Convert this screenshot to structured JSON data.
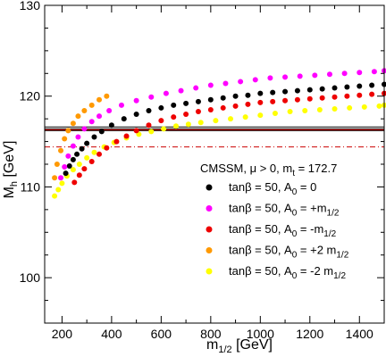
{
  "chart_data": {
    "type": "scatter",
    "xlabel": "m",
    "xlabel_sub": "1/2",
    "xlabel_unit": " [GeV]",
    "ylabel": "M",
    "ylabel_sub": "h",
    "ylabel_unit": " [GeV]",
    "xlim": [
      130,
      1500
    ],
    "ylim": [
      95,
      130
    ],
    "x_ticks": [
      200,
      400,
      600,
      800,
      1000,
      1200,
      1400
    ],
    "y_ticks": [
      100,
      110,
      120,
      130
    ],
    "grid": false,
    "annotation": {
      "text": "CMSSM, μ > 0, m",
      "sub": "t",
      "rest": " = 172.7"
    },
    "reference_lines": [
      {
        "style": "solid",
        "color": "#000000",
        "y": 116.2
      },
      {
        "style": "solid",
        "color": "#000000",
        "y": 116.4
      },
      {
        "style": "solid",
        "color": "#cc0000",
        "y": 116.3
      },
      {
        "style": "solid",
        "color": "#000000",
        "y": 116.6
      },
      {
        "style": "dashdot",
        "color": "#cc0000",
        "y": 114.4
      }
    ],
    "series": [
      {
        "name": "tanβ = 50, A0 = 0",
        "legend_main": "tanβ = 50, A",
        "legend_sub": "0",
        "legend_rest": " = 0",
        "legend_rest_sub": "",
        "color": "#000000",
        "x": [
          215,
          230,
          245,
          260,
          280,
          300,
          330,
          360,
          400,
          450,
          500,
          550,
          600,
          650,
          700,
          750,
          800,
          850,
          900,
          950,
          1000,
          1050,
          1100,
          1150,
          1200,
          1250,
          1300,
          1350,
          1400,
          1450,
          1500
        ],
        "y": [
          111.5,
          112.3,
          113.0,
          113.6,
          114.2,
          114.8,
          115.5,
          116.1,
          116.8,
          117.5,
          118.0,
          118.4,
          118.7,
          119.0,
          119.2,
          119.4,
          119.6,
          119.8,
          120.0,
          120.1,
          120.3,
          120.4,
          120.5,
          120.6,
          120.7,
          120.8,
          120.9,
          121.0,
          121.1,
          121.2,
          121.3
        ]
      },
      {
        "name": "tanβ = 50, A0 = +m1/2",
        "legend_main": "tanβ = 50, A",
        "legend_sub": "0",
        "legend_rest": " = +m",
        "legend_rest_sub": "1/2",
        "color": "#ff00ff",
        "x": [
          195,
          210,
          225,
          245,
          265,
          290,
          320,
          350,
          390,
          440,
          500,
          560,
          620,
          680,
          740,
          800,
          860,
          920,
          980,
          1040,
          1100,
          1160,
          1220,
          1280,
          1340,
          1400,
          1460,
          1500
        ],
        "y": [
          111.0,
          112.2,
          113.4,
          114.5,
          115.5,
          116.4,
          117.2,
          117.8,
          118.4,
          119.0,
          119.5,
          119.9,
          120.3,
          120.6,
          120.9,
          121.2,
          121.4,
          121.6,
          121.8,
          122.0,
          122.1,
          122.2,
          122.3,
          122.4,
          122.5,
          122.6,
          122.7,
          122.8
        ]
      },
      {
        "name": "tanβ = 50, A0 = -m1/2",
        "legend_main": "tanβ = 50, A",
        "legend_sub": "0",
        "legend_rest": " = -m",
        "legend_rest_sub": "1/2",
        "color": "#ee0000",
        "x": [
          250,
          270,
          290,
          320,
          350,
          380,
          420,
          460,
          500,
          550,
          600,
          650,
          700,
          750,
          800,
          850,
          900,
          950,
          1000,
          1050,
          1100,
          1150,
          1200,
          1250,
          1300,
          1350,
          1400,
          1450,
          1500
        ],
        "y": [
          110.5,
          111.3,
          112.0,
          112.8,
          113.6,
          114.3,
          115.0,
          115.6,
          116.2,
          116.8,
          117.3,
          117.7,
          118.0,
          118.3,
          118.5,
          118.7,
          118.9,
          119.1,
          119.3,
          119.4,
          119.5,
          119.6,
          119.7,
          119.8,
          119.9,
          120.0,
          120.1,
          120.2,
          120.3
        ]
      },
      {
        "name": "tanβ = 50, A0 = +2 m1/2",
        "legend_main": "tanβ = 50, A",
        "legend_sub": "0",
        "legend_rest": " = +2 m",
        "legend_rest_sub": "1/2",
        "color": "#ff9900",
        "x": [
          170,
          180,
          195,
          210,
          225,
          245,
          265,
          290,
          320,
          350,
          380
        ],
        "y": [
          111.0,
          112.5,
          114.0,
          115.3,
          116.2,
          117.0,
          117.8,
          118.4,
          119.0,
          119.6,
          120.0
        ]
      },
      {
        "name": "tanβ = 50, A0 = -2 m1/2",
        "legend_main": "tanβ = 50, A",
        "legend_sub": "0",
        "legend_rest": " = -2 m",
        "legend_rest_sub": "1/2",
        "color": "#ffff00",
        "x": [
          170,
          185,
          200,
          220,
          245,
          270,
          300,
          330,
          370,
          410,
          460,
          510,
          560,
          610,
          660,
          710,
          760,
          820,
          880,
          940,
          1000,
          1060,
          1120,
          1180,
          1240,
          1300,
          1360,
          1420,
          1480,
          1500
        ],
        "y": [
          109.0,
          109.7,
          110.4,
          111.2,
          111.9,
          112.5,
          113.2,
          113.8,
          114.4,
          114.9,
          115.4,
          115.8,
          116.1,
          116.4,
          116.7,
          116.9,
          117.1,
          117.3,
          117.5,
          117.7,
          117.9,
          118.1,
          118.3,
          118.4,
          118.5,
          118.6,
          118.7,
          118.8,
          118.9,
          119.0
        ]
      }
    ]
  }
}
